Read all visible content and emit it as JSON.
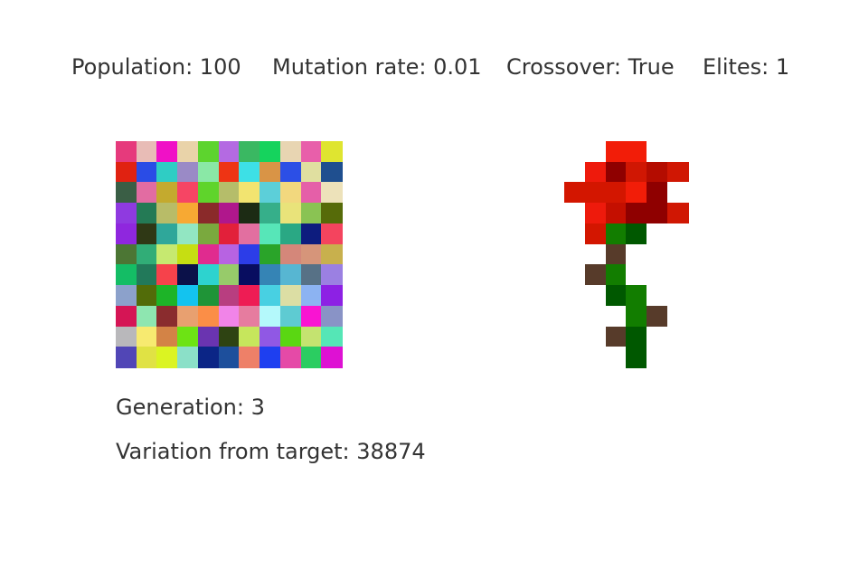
{
  "params": {
    "population": "Population: 100",
    "mutation_rate": "Mutation rate: 0.01",
    "crossover": "Crossover: True",
    "elites": "Elites: 1"
  },
  "status": {
    "generation": "Generation: 3",
    "variation": "Variation from target: 38874"
  },
  "current_grid": {
    "cols": 11,
    "rows": 11,
    "colors": [
      [
        "#e63a7c",
        "#e8bcb6",
        "#f011c6",
        "#e9d3a9",
        "#5dd42e",
        "#b46ae2",
        "#3ab862",
        "#15d35d",
        "#e8d5b2",
        "#e85faa",
        "#dfe530"
      ],
      [
        "#e02211",
        "#2a4ce6",
        "#2fcdc4",
        "#9a8ac6",
        "#8ae8a6",
        "#ee3414",
        "#3de0e6",
        "#d99446",
        "#2c4fe6",
        "#e0dfa0",
        "#1f4f8f"
      ],
      [
        "#3a5e45",
        "#e26ca2",
        "#c4aa2e",
        "#f64564",
        "#5fd42b",
        "#b5bd6a",
        "#f2e470",
        "#5ccfd9",
        "#f2d87e",
        "#e55fa8",
        "#ede2ba"
      ],
      [
        "#8f3ae0",
        "#247a55",
        "#b8bc68",
        "#f7a933",
        "#8a2a2a",
        "#b0178c",
        "#1c2b14",
        "#36af8a",
        "#e9e37a",
        "#8ac353",
        "#566b09"
      ],
      [
        "#8f27de",
        "#2f3815",
        "#2fa79a",
        "#92e6c2",
        "#7aa93e",
        "#e2203a",
        "#e26fa0",
        "#57e6b8",
        "#2aa884",
        "#0d1c7e",
        "#f4445e"
      ],
      [
        "#4c7634",
        "#31ad77",
        "#c6e970",
        "#c6de12",
        "#e02b8f",
        "#b763e2",
        "#2c3de8",
        "#2aa429",
        "#d4877a",
        "#d6957a",
        "#c8b04d"
      ],
      [
        "#14bd65",
        "#22795a",
        "#f6424b",
        "#0b1149",
        "#2dd3cf",
        "#97cb6a",
        "#080d60",
        "#3584b5",
        "#57b6d2",
        "#577186",
        "#9b80e2"
      ],
      [
        "#8ca1cb",
        "#526c09",
        "#1db428",
        "#13c3ef",
        "#1f9437",
        "#b83e80",
        "#ee1c54",
        "#48d0e2",
        "#dcdea4",
        "#8cb3f2",
        "#8d21e4"
      ],
      [
        "#d51555",
        "#8ee6b0",
        "#8a2c2e",
        "#e8a070",
        "#fb8e47",
        "#f184e8",
        "#e67c9f",
        "#b4f9fb",
        "#5ecbd2",
        "#f914d2",
        "#8993c6"
      ],
      [
        "#b9b8bb",
        "#f7ea70",
        "#d38346",
        "#6de314",
        "#6a34b0",
        "#2e4312",
        "#c6e65c",
        "#9058e4",
        "#5ad712",
        "#c4e370",
        "#55e6b6"
      ],
      [
        "#5146b6",
        "#e0e244",
        "#dbf422",
        "#8be0c8",
        "#0b2586",
        "#1d4f9c",
        "#ee8068",
        "#1e3ff0",
        "#e54aa7",
        "#2bcd61",
        "#de11d3"
      ]
    ]
  },
  "target_grid": {
    "cols": 6,
    "rows": 11,
    "colors": [
      [
        "#ffffff",
        "#ffffff",
        "#f21d08",
        "#f21d08",
        "#ffffff",
        "#ffffff"
      ],
      [
        "#ffffff",
        "#ee1a0c",
        "#8f0000",
        "#d01703",
        "#b40c00",
        "#d01703"
      ],
      [
        "#d31600",
        "#d31600",
        "#d31600",
        "#f21d08",
        "#8f0000",
        "#ffffff"
      ],
      [
        "#ffffff",
        "#ee1a0c",
        "#c40f00",
        "#8f0000",
        "#8f0000",
        "#d01703"
      ],
      [
        "#ffffff",
        "#d31600",
        "#127d00",
        "#005800",
        "#ffffff",
        "#ffffff"
      ],
      [
        "#ffffff",
        "#ffffff",
        "#573b2a",
        "#ffffff",
        "#ffffff",
        "#ffffff"
      ],
      [
        "#ffffff",
        "#573b2a",
        "#127d00",
        "#ffffff",
        "#ffffff",
        "#ffffff"
      ],
      [
        "#ffffff",
        "#ffffff",
        "#005800",
        "#127d00",
        "#ffffff",
        "#ffffff"
      ],
      [
        "#ffffff",
        "#ffffff",
        "#ffffff",
        "#127d00",
        "#573b2a",
        "#ffffff"
      ],
      [
        "#ffffff",
        "#ffffff",
        "#573b2a",
        "#005800",
        "#ffffff",
        "#ffffff"
      ],
      [
        "#ffffff",
        "#ffffff",
        "#ffffff",
        "#005800",
        "#ffffff",
        "#ffffff"
      ]
    ]
  }
}
